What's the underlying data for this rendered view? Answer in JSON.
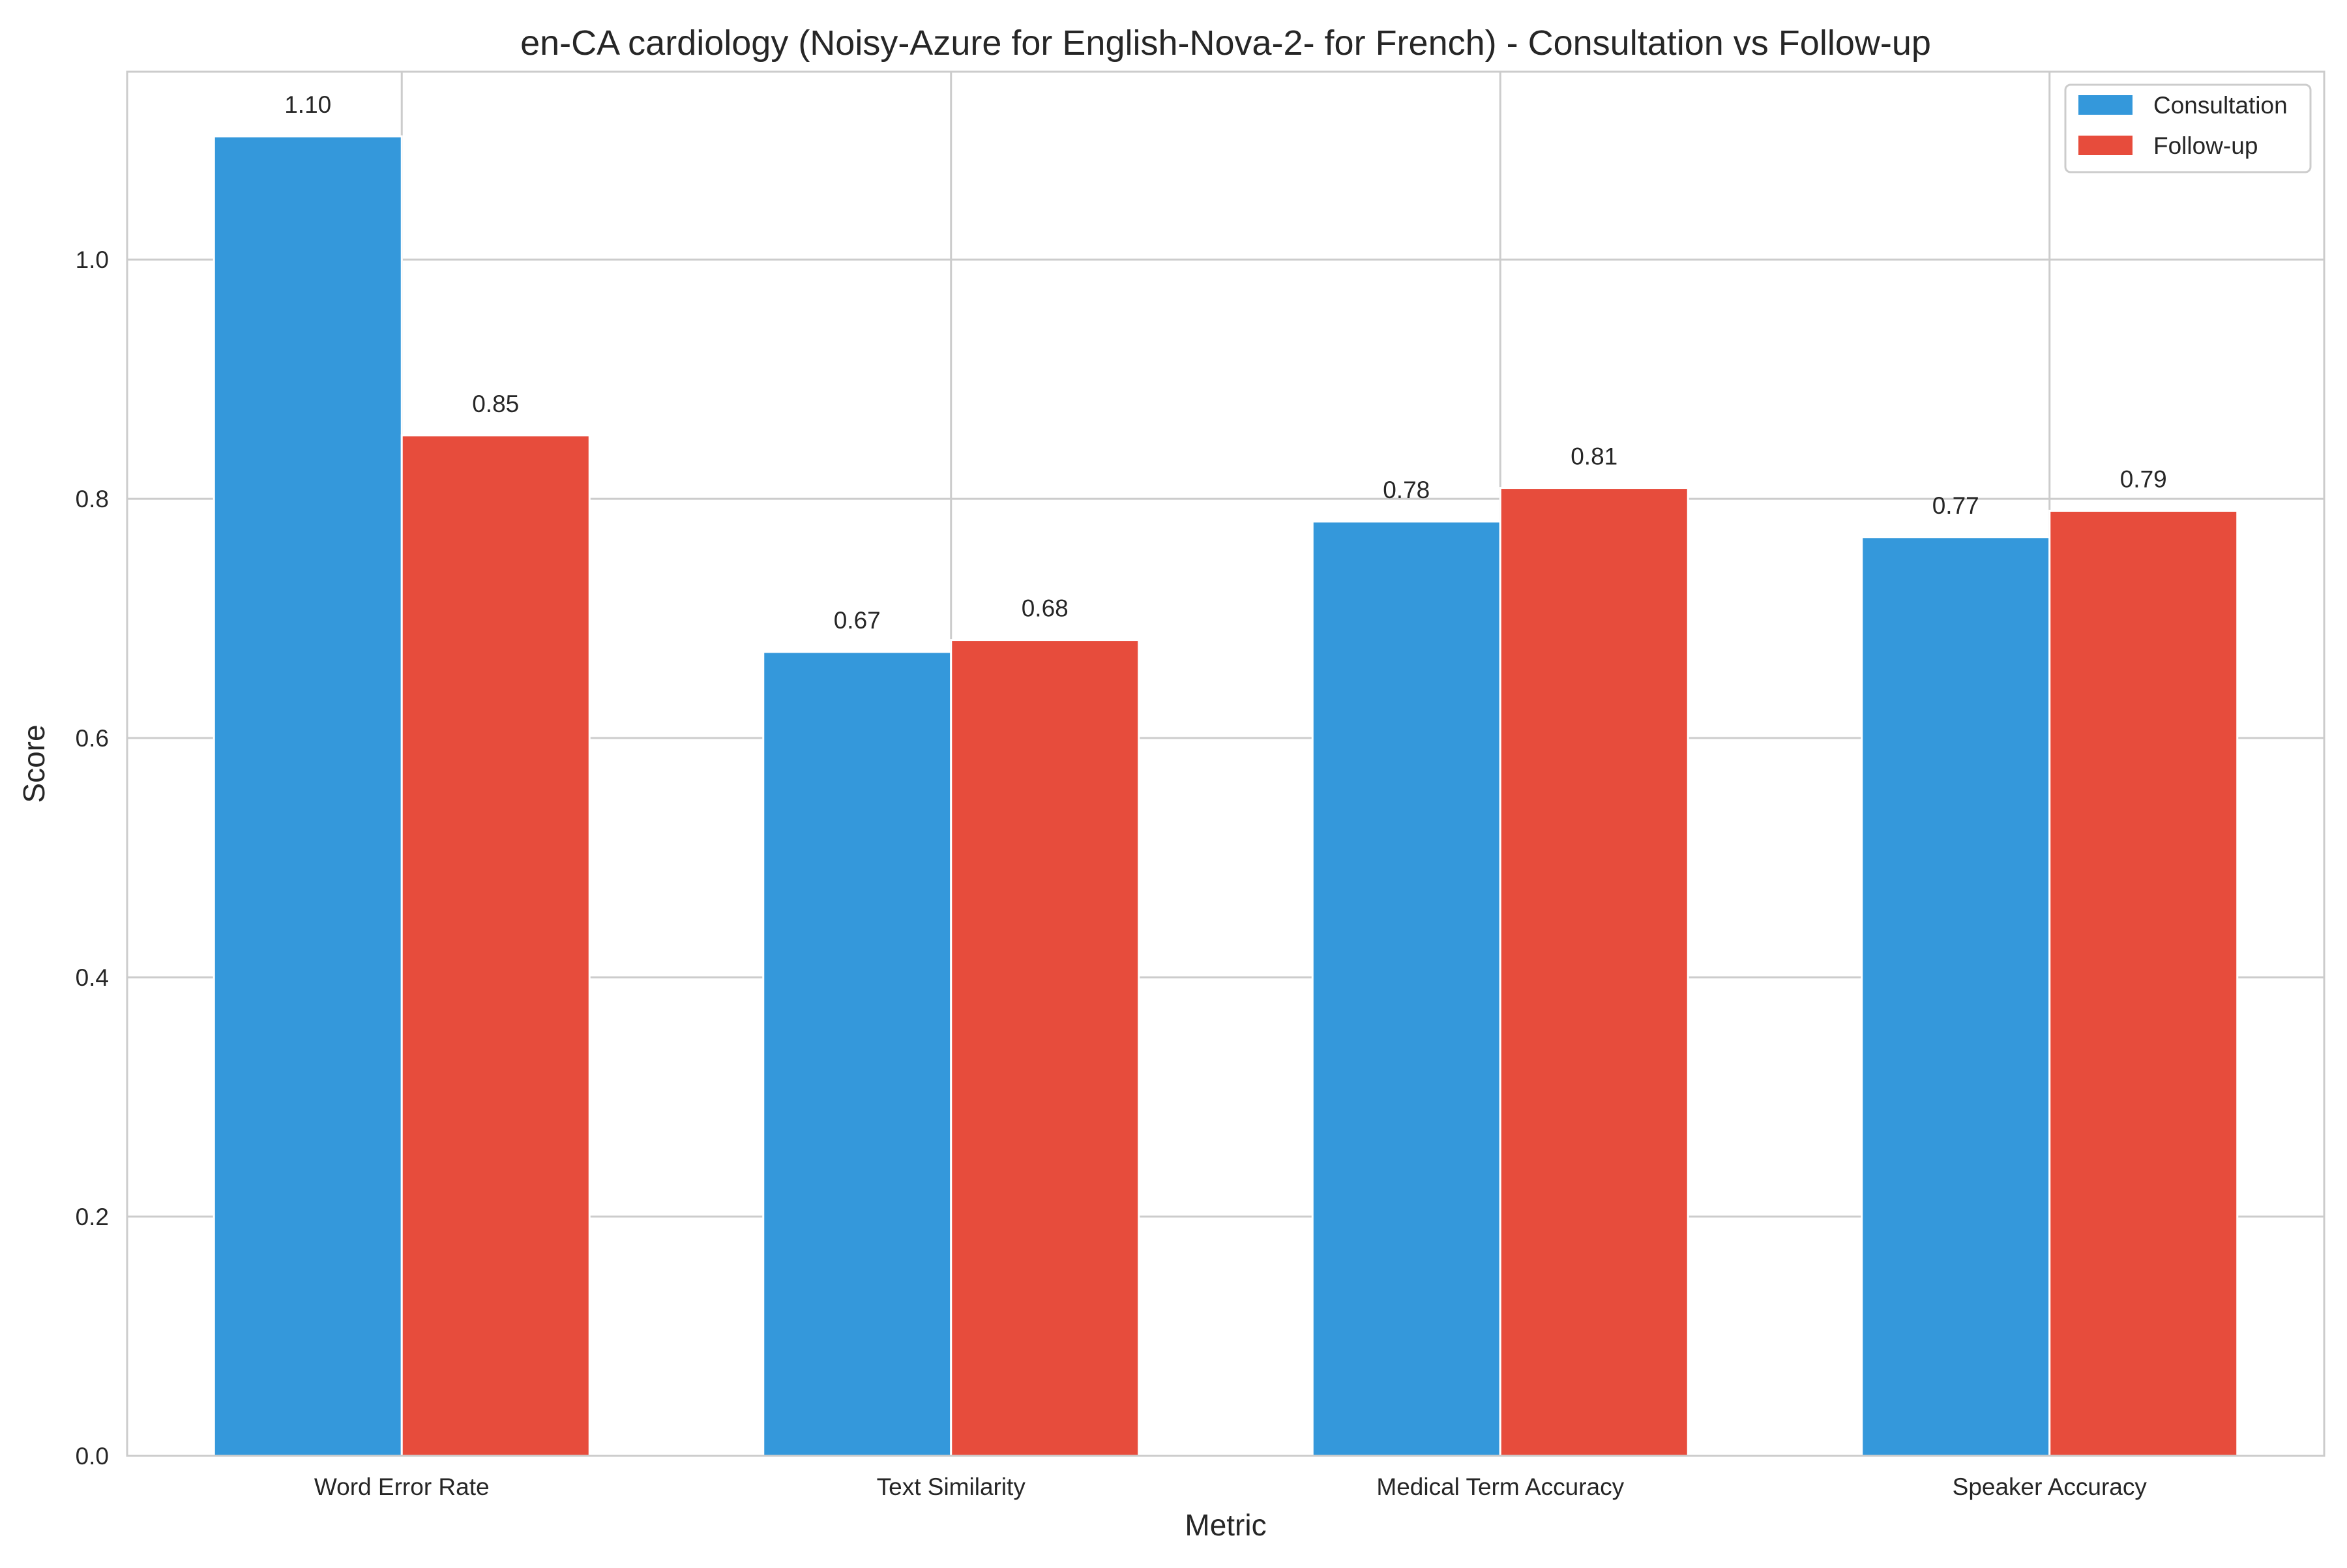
{
  "chart_data": {
    "type": "bar",
    "title": "en-CA cardiology (Noisy-Azure for English-Nova-2- for French) - Consultation vs Follow-up",
    "xlabel": "Metric",
    "ylabel": "Score",
    "categories": [
      "Word Error Rate",
      "Text Similarity",
      "Medical Term Accuracy",
      "Speaker Accuracy"
    ],
    "series": [
      {
        "name": "Consultation",
        "color": "#3498db",
        "values": [
          1.103,
          0.672,
          0.781,
          0.768
        ],
        "labels": [
          "1.10",
          "0.67",
          "0.78",
          "0.77"
        ]
      },
      {
        "name": "Follow-up",
        "color": "#e74c3c",
        "values": [
          0.853,
          0.682,
          0.809,
          0.79
        ],
        "labels": [
          "0.85",
          "0.68",
          "0.81",
          "0.79"
        ]
      }
    ],
    "ylim": [
      0,
      1.157
    ],
    "yticks": [
      0.0,
      0.2,
      0.4,
      0.6,
      0.8,
      1.0
    ],
    "ytick_labels": [
      "0.0",
      "0.2",
      "0.4",
      "0.6",
      "0.8",
      "1.0"
    ],
    "grid": true,
    "legend_position": "top-right"
  }
}
